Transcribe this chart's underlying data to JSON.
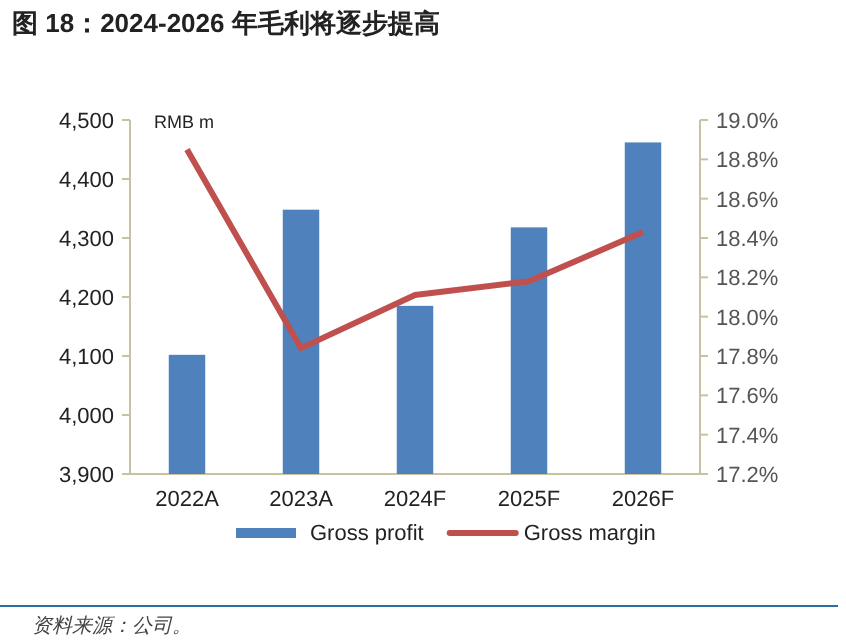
{
  "chart_data": {
    "type": "bar",
    "title": "图 18：2024-2026 年毛利将逐步提高",
    "ylabel": "RMB m",
    "categories": [
      "2022A",
      "2023A",
      "2024F",
      "2025F",
      "2026F"
    ],
    "series": [
      {
        "name": "Gross profit",
        "color": "#4f81bd",
        "values": [
          4102,
          4348,
          4185,
          4318,
          4462
        ]
      },
      {
        "name": "Gross margin",
        "type": "line",
        "axis": "y2",
        "color": "#c0504d",
        "values": [
          18.85,
          17.84,
          18.11,
          18.18,
          18.43
        ]
      }
    ],
    "ylim": [
      3900,
      4500
    ],
    "yticks": [
      {
        "value": 3900,
        "label": "3,900"
      },
      {
        "value": 4000,
        "label": "4,000"
      },
      {
        "value": 4100,
        "label": "4,100"
      },
      {
        "value": 4200,
        "label": "4,200"
      },
      {
        "value": 4300,
        "label": "4,300"
      },
      {
        "value": 4400,
        "label": "4,400"
      },
      {
        "value": 4500,
        "label": "4,500"
      }
    ],
    "y2lim": [
      17.2,
      19.0
    ],
    "y2ticks": [
      {
        "value": 17.2,
        "label": "17.2%"
      },
      {
        "value": 17.4,
        "label": "17.4%"
      },
      {
        "value": 17.6,
        "label": "17.6%"
      },
      {
        "value": 17.8,
        "label": "17.8%"
      },
      {
        "value": 18.0,
        "label": "18.0%"
      },
      {
        "value": 18.2,
        "label": "18.2%"
      },
      {
        "value": 18.4,
        "label": "18.4%"
      },
      {
        "value": 18.6,
        "label": "18.6%"
      },
      {
        "value": 18.8,
        "label": "18.8%"
      },
      {
        "value": 19.0,
        "label": "19.0%"
      }
    ],
    "legend": "bottom",
    "annotations": [
      "资料来源：公司。"
    ]
  }
}
